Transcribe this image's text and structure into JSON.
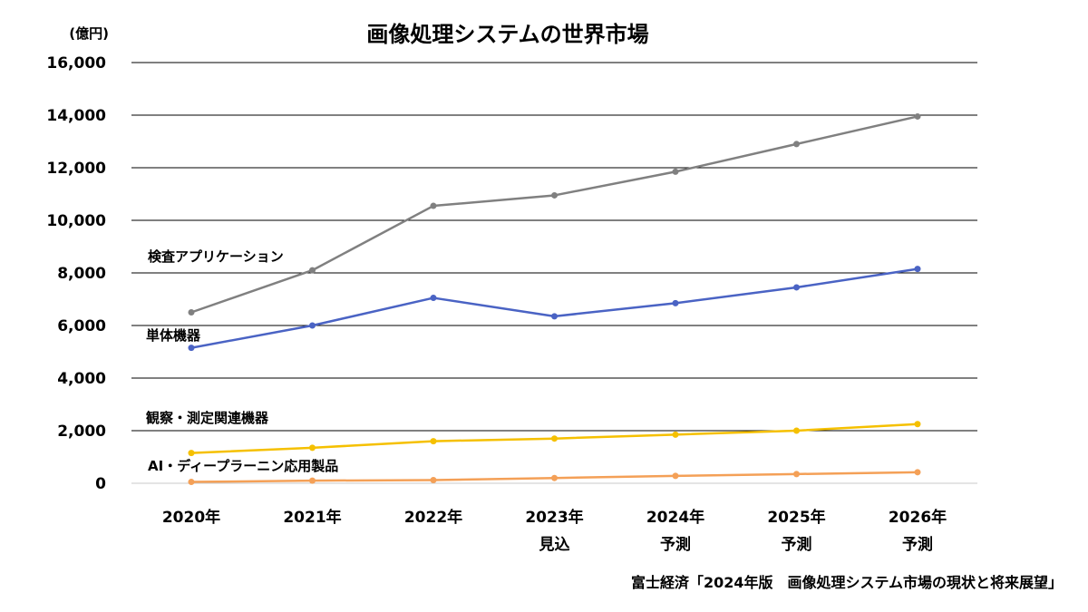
{
  "chart_data": {
    "type": "line",
    "title": "画像処理システムの世界市場",
    "unit_label": "(億円)",
    "ylim": [
      0,
      16000
    ],
    "yticks": [
      0,
      2000,
      4000,
      6000,
      8000,
      10000,
      12000,
      14000,
      16000
    ],
    "ytick_labels": [
      "0",
      "2,000",
      "4,000",
      "6,000",
      "8,000",
      "10,000",
      "12,000",
      "14,000",
      "16,000"
    ],
    "categories": [
      "2020年",
      "2021年",
      "2022年",
      "2023年",
      "2024年",
      "2025年",
      "2026年"
    ],
    "category_sublabels": [
      "",
      "",
      "",
      "見込",
      "予測",
      "予測",
      "予測"
    ],
    "grid": "horizontal",
    "legend": "inline labels",
    "series": [
      {
        "name": "検査アプリケーション",
        "color": "#808080",
        "values": [
          6500,
          8100,
          10550,
          10950,
          11850,
          12900,
          13950
        ]
      },
      {
        "name": "単体機器",
        "color": "#4a63c4",
        "values": [
          5150,
          6000,
          7050,
          6350,
          6850,
          7450,
          8150
        ]
      },
      {
        "name": "観察・測定関連機器",
        "color": "#f5c000",
        "values": [
          1150,
          1350,
          1600,
          1700,
          1850,
          2000,
          2250
        ]
      },
      {
        "name": "AI・ディープラーニン応用製品",
        "color": "#f4a057",
        "values": [
          50,
          100,
          120,
          200,
          280,
          350,
          420
        ]
      }
    ],
    "source": "富士経済「2024年版　画像処理システム市場の現状と将来展望」"
  }
}
